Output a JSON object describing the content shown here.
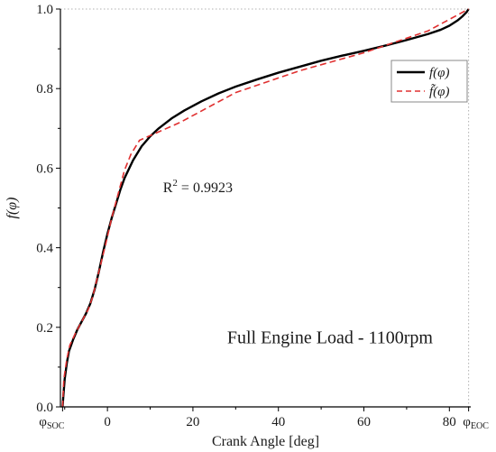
{
  "chart_data": {
    "type": "line",
    "xlabel": "Crank Angle [deg]",
    "ylabel": "f(φ)",
    "xlim": [
      -11,
      85
    ],
    "ylim": [
      0,
      1.0
    ],
    "x_ticks": [
      0,
      20,
      40,
      60,
      80
    ],
    "y_ticks": [
      0.0,
      0.2,
      0.4,
      0.6,
      0.8,
      1.0
    ],
    "x_tick_labels": [
      "0",
      "20",
      "40",
      "60",
      "80"
    ],
    "y_tick_labels": [
      "0.0",
      "0.2",
      "0.4",
      "0.6",
      "0.8",
      "1.0"
    ],
    "special_x_ticks": [
      {
        "x": -10.5,
        "label": "φ",
        "sub": "SOC"
      },
      {
        "x": 84.5,
        "label": "φ",
        "sub": "EOC"
      }
    ],
    "series": [
      {
        "name": "f(φ)",
        "style": "solid",
        "color": "#000000",
        "x": [
          -10.5,
          -10.3,
          -10,
          -9.5,
          -9,
          -8,
          -7,
          -6,
          -5,
          -4,
          -3,
          -2,
          -1,
          0,
          1,
          2,
          3,
          4,
          6,
          8,
          10,
          12,
          15,
          18,
          22,
          26,
          30,
          35,
          40,
          45,
          50,
          55,
          60,
          65,
          70,
          75,
          78,
          80,
          82,
          83,
          84,
          84.5
        ],
        "y": [
          0.0,
          0.03,
          0.07,
          0.11,
          0.14,
          0.17,
          0.195,
          0.215,
          0.235,
          0.26,
          0.295,
          0.34,
          0.39,
          0.435,
          0.475,
          0.51,
          0.545,
          0.575,
          0.62,
          0.655,
          0.68,
          0.7,
          0.725,
          0.745,
          0.768,
          0.788,
          0.805,
          0.823,
          0.84,
          0.855,
          0.87,
          0.883,
          0.895,
          0.908,
          0.922,
          0.937,
          0.948,
          0.958,
          0.972,
          0.981,
          0.992,
          1.0
        ]
      },
      {
        "name": "f̃(φ)",
        "style": "dashed",
        "color": "#e03030",
        "x": [
          -10.5,
          -10.2,
          -9.5,
          -8.8,
          -7.5,
          -6,
          -4.5,
          -3.5,
          -2,
          -0.5,
          1,
          2.5,
          4,
          5.5,
          7.5,
          17,
          30,
          45,
          60,
          75,
          84.5
        ],
        "y": [
          0.0,
          0.07,
          0.12,
          0.155,
          0.185,
          0.215,
          0.245,
          0.275,
          0.34,
          0.405,
          0.475,
          0.535,
          0.595,
          0.635,
          0.67,
          0.715,
          0.79,
          0.845,
          0.89,
          0.945,
          1.0
        ]
      }
    ],
    "annotations": [
      {
        "text": "R",
        "sup": "2",
        "rest": " = 0.9923",
        "x": 13,
        "y": 0.54
      },
      {
        "text": "Full Engine Load - 1100rpm",
        "x": 28,
        "y": 0.16
      }
    ],
    "legend": {
      "position": "top-right"
    },
    "grid": false
  }
}
